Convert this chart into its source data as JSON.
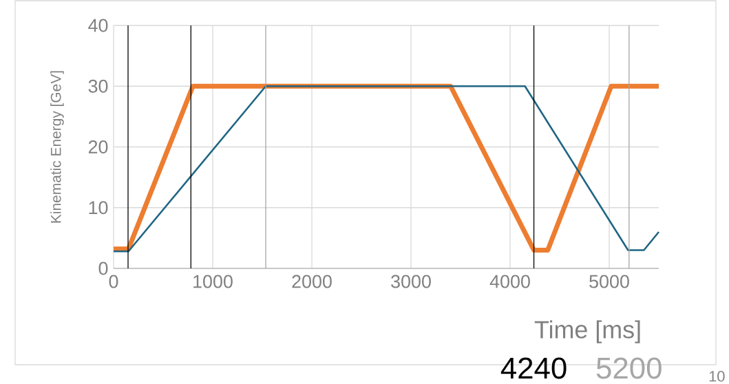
{
  "chart_data": {
    "type": "line",
    "xlabel": "Time [ms]",
    "ylabel": "Kinematic Energy [GeV]",
    "xlim": [
      0,
      5500
    ],
    "xticks": [
      0,
      1000,
      2000,
      3000,
      4000,
      5000
    ],
    "ylim": [
      0,
      40
    ],
    "yticks": [
      0,
      10,
      20,
      30,
      40
    ],
    "grid": true,
    "line_style": "solid",
    "marker": "none",
    "series": [
      {
        "color": "#ed7d31",
        "x": [
          0,
          150,
          800,
          3400,
          4240,
          4380,
          5020,
          5500
        ],
        "values": [
          3.2,
          3.2,
          30,
          30,
          3,
          3,
          30,
          30
        ]
      },
      {
        "color": "#1f6583",
        "x": [
          0,
          150,
          1535,
          4150,
          5190,
          5350,
          5500
        ],
        "values": [
          2.8,
          2.8,
          30,
          30,
          3,
          3,
          6
        ]
      }
    ],
    "ref_lines": [
      {
        "axis": "x",
        "value": 146,
        "color": "#000000"
      },
      {
        "axis": "x",
        "value": 780,
        "color": "#000000"
      },
      {
        "axis": "x",
        "value": 1535,
        "color": "#a6a6a6"
      },
      {
        "axis": "x",
        "value": 4240,
        "label": "4240",
        "color": "#000000"
      },
      {
        "axis": "x",
        "value": 5200,
        "label": "5200",
        "color": "#a6a6a6"
      }
    ],
    "annotations": [
      "10"
    ]
  }
}
